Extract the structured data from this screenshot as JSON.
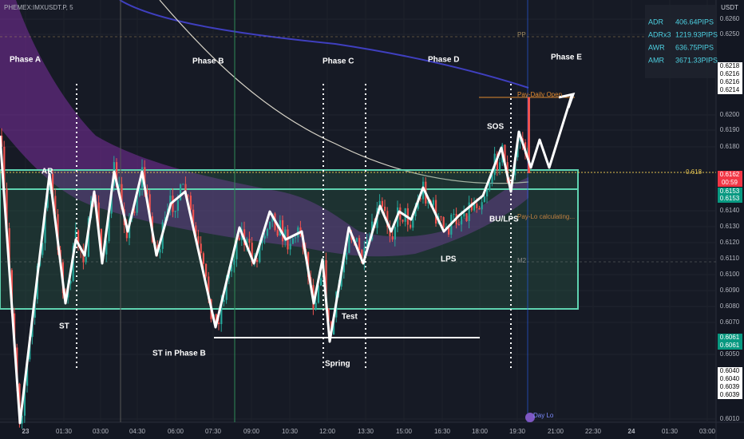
{
  "header": {
    "symbol": "PHEMEX:IMXUSDT.P, 5"
  },
  "price_axis": {
    "unit": "USDT",
    "labels": [
      "0.6260",
      "0.6250",
      "0.6200",
      "0.6190",
      "0.6180",
      "0.6140",
      "0.6130",
      "0.6120",
      "0.6110",
      "0.6100",
      "0.6090",
      "0.6080",
      "0.6070",
      "0.6050",
      "0.6010"
    ],
    "boxes": [
      "0.6218",
      "0.6216",
      "0.6216",
      "0.6214",
      "0.6162",
      "00:59",
      "0.6153",
      "0.6153",
      "0.6061",
      "0.6061",
      "0.6040",
      "0.6040",
      "0.6039",
      "0.6039"
    ]
  },
  "time_axis": {
    "labels": [
      "23",
      "01:30",
      "03:00",
      "04:30",
      "06:00",
      "07:30",
      "09:00",
      "10:30",
      "12:00",
      "13:30",
      "15:00",
      "16:30",
      "18:00",
      "19:30",
      "21:00",
      "22:30",
      "24",
      "01:30",
      "03:00"
    ]
  },
  "info_panel": {
    "rows": [
      [
        "ADR",
        "406.64PIPS"
      ],
      [
        "ADRx3",
        "1219.93PIPS"
      ],
      [
        "AWR",
        "636.75PIPS"
      ],
      [
        "AMR",
        "3671.33PIPS"
      ]
    ]
  },
  "annotations": {
    "phases": [
      "Phase A",
      "Phase B",
      "Phase C",
      "Phase D",
      "Phase E"
    ],
    "events": [
      "AR",
      "ST",
      "ST in Phase B",
      "Spring",
      "Test",
      "LPS",
      "SOS",
      "BU/LPS"
    ],
    "levels": [
      "0.618",
      "PP",
      "Pay-Daily Open",
      "Pay-Lo calculating...",
      "M2",
      "Day Lo"
    ]
  }
}
